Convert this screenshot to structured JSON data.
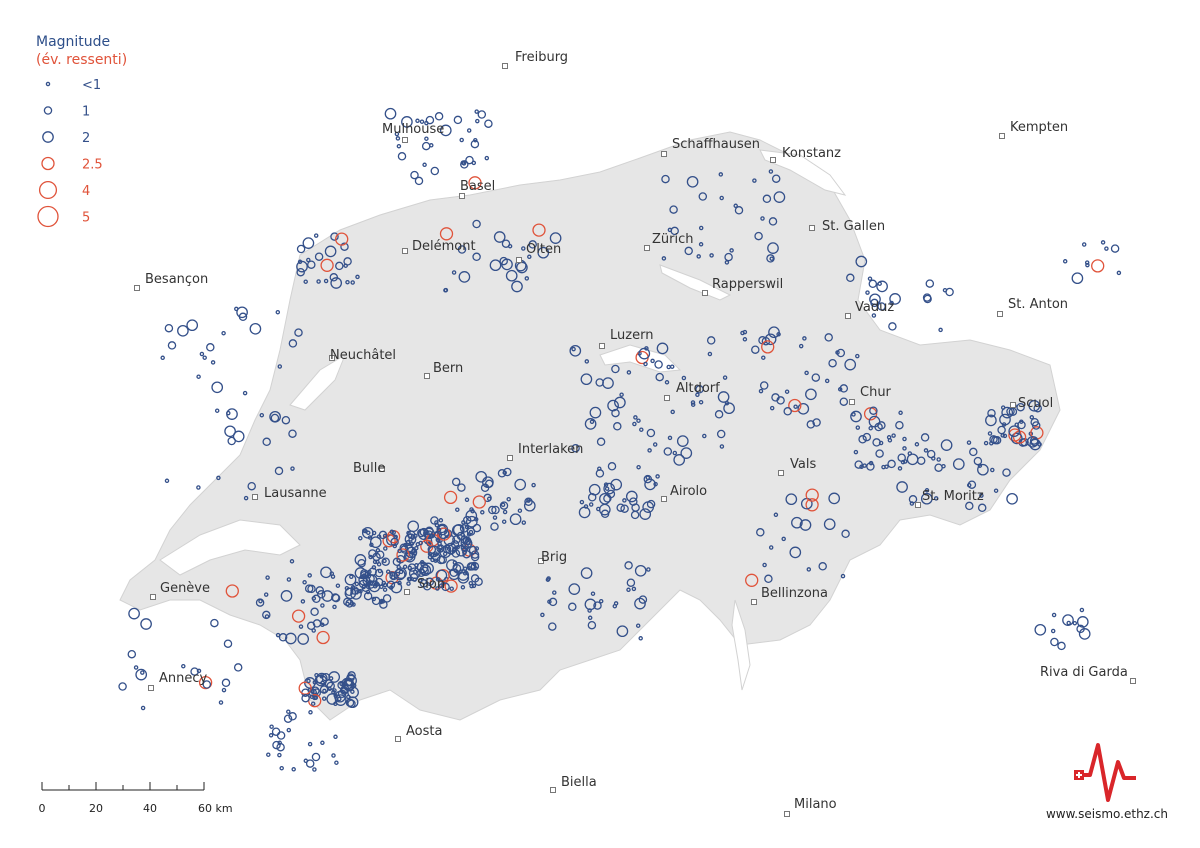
{
  "legend": {
    "title": "Magnitude",
    "subtitle": "(év. ressenti)",
    "items": [
      {
        "label": "<1",
        "magnitude": 0.5,
        "felt": false
      },
      {
        "label": "1",
        "magnitude": 1,
        "felt": false
      },
      {
        "label": "2",
        "magnitude": 2,
        "felt": false
      },
      {
        "label": "2.5",
        "magnitude": 2.5,
        "felt": true
      },
      {
        "label": "4",
        "magnitude": 4,
        "felt": true
      },
      {
        "label": "5",
        "magnitude": 5,
        "felt": true
      }
    ]
  },
  "colors": {
    "normal": "#34508a",
    "felt": "#e0533a",
    "land": "#e6e6e6",
    "lake": "#ffffff",
    "city_marker": "#777777"
  },
  "cities": [
    "Freiburg",
    "Mulhouse",
    "Basel",
    "Schaffhausen",
    "Konstanz",
    "Kempten",
    "St. Gallen",
    "Zürich",
    "Olten",
    "Delémont",
    "Besançon",
    "Rapperswil",
    "Vaduz",
    "St. Anton",
    "Luzern",
    "Neuchâtel",
    "Bern",
    "Altdorf",
    "Chur",
    "Scuol",
    "Interlaken",
    "Bulle",
    "Lausanne",
    "Vals",
    "Airolo",
    "St. Moritz",
    "Brig",
    "Sion",
    "Genève",
    "Bellinzona",
    "Riva di Garda",
    "Annecy",
    "Aosta",
    "Biella",
    "Milano"
  ],
  "scale_bar": {
    "ticks": [
      "0",
      "20",
      "40",
      "60 km"
    ]
  },
  "credit": "www.seismo.ethz.ch"
}
